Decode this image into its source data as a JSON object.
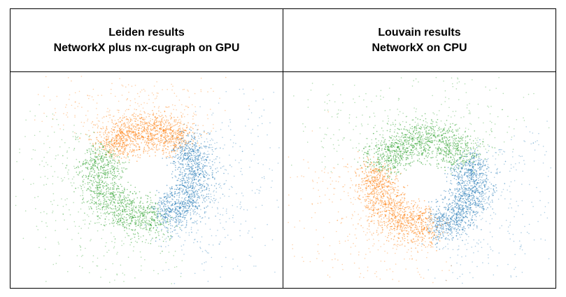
{
  "panels": [
    {
      "title_line1": "Leiden results",
      "title_line2": "NetworkX plus nx-cugraph on GPU",
      "communities": [
        {
          "color": "#ff7f0e",
          "arc_start_deg": 215,
          "arc_end_deg": 315
        },
        {
          "color": "#1f77b4",
          "arc_start_deg": -45,
          "arc_end_deg": 75
        },
        {
          "color": "#2ca02c",
          "arc_start_deg": 75,
          "arc_end_deg": 215
        }
      ]
    },
    {
      "title_line1": "Louvain results",
      "title_line2": "NetworkX on CPU",
      "communities": [
        {
          "color": "#2ca02c",
          "arc_start_deg": 200,
          "arc_end_deg": 330
        },
        {
          "color": "#1f77b4",
          "arc_start_deg": -30,
          "arc_end_deg": 80
        },
        {
          "color": "#ff7f0e",
          "arc_start_deg": 80,
          "arc_end_deg": 200
        }
      ]
    }
  ]
}
